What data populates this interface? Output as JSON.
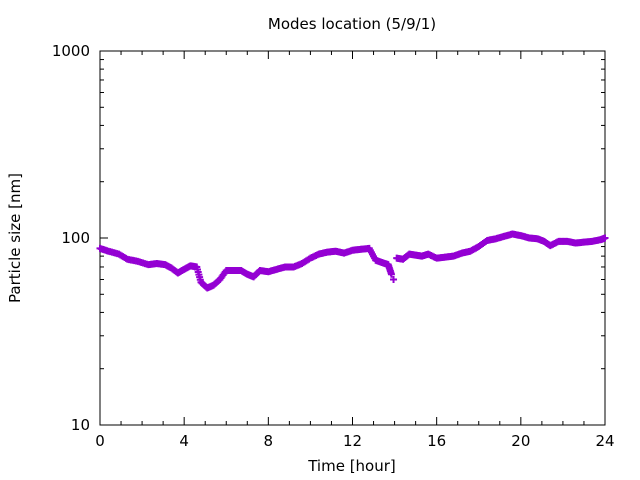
{
  "chart_data": {
    "type": "scatter",
    "title": "Modes location (5/9/1)",
    "xlabel": "Time [hour]",
    "ylabel": "Particle size [nm]",
    "xlim": [
      0,
      24
    ],
    "ylim": [
      10,
      1000
    ],
    "yscale": "log",
    "xticks": [
      0,
      4,
      8,
      12,
      16,
      20,
      24
    ],
    "xtick_labels": [
      "0",
      "4",
      "8",
      "12",
      "16",
      "20",
      "24"
    ],
    "yticks": [
      10,
      100,
      1000
    ],
    "ytick_labels": [
      "10",
      "100",
      "1000"
    ],
    "grid": false,
    "legend": "none",
    "marker": "plus",
    "color": "#9400d3",
    "series": [
      {
        "points": [
          [
            0.0,
            88
          ],
          [
            0.4,
            85
          ],
          [
            0.9,
            82
          ],
          [
            1.3,
            77
          ],
          [
            1.8,
            75
          ],
          [
            2.3,
            72
          ],
          [
            2.7,
            73
          ],
          [
            3.1,
            72
          ],
          [
            3.4,
            69
          ],
          [
            3.7,
            65
          ],
          [
            4.0,
            68
          ],
          [
            4.3,
            71
          ],
          [
            4.6,
            70
          ],
          [
            4.8,
            58
          ],
          [
            5.1,
            54
          ],
          [
            5.4,
            56
          ],
          [
            5.7,
            60
          ],
          [
            6.0,
            67
          ],
          [
            6.3,
            67
          ],
          [
            6.7,
            67
          ],
          [
            7.0,
            64
          ],
          [
            7.3,
            62
          ],
          [
            7.6,
            67
          ],
          [
            8.0,
            66
          ],
          [
            8.4,
            68
          ],
          [
            8.8,
            70
          ],
          [
            9.2,
            70
          ],
          [
            9.6,
            73
          ],
          [
            10.0,
            78
          ],
          [
            10.4,
            82
          ],
          [
            10.8,
            84
          ],
          [
            11.2,
            85
          ],
          [
            11.6,
            83
          ],
          [
            12.0,
            86
          ],
          [
            12.4,
            87
          ],
          [
            12.8,
            88
          ],
          [
            13.1,
            76
          ],
          [
            13.4,
            74
          ],
          [
            13.7,
            72
          ],
          [
            13.85,
            64
          ],
          [
            13.95,
            60
          ],
          [
            14.1,
            78
          ],
          [
            14.4,
            77
          ],
          [
            14.7,
            82
          ],
          [
            15.0,
            81
          ],
          [
            15.3,
            80
          ],
          [
            15.6,
            82
          ],
          [
            16.0,
            78
          ],
          [
            16.4,
            79
          ],
          [
            16.8,
            80
          ],
          [
            17.2,
            83
          ],
          [
            17.6,
            85
          ],
          [
            18.0,
            90
          ],
          [
            18.4,
            97
          ],
          [
            18.8,
            99
          ],
          [
            19.2,
            102
          ],
          [
            19.6,
            105
          ],
          [
            20.0,
            103
          ],
          [
            20.4,
            100
          ],
          [
            20.8,
            99
          ],
          [
            21.1,
            96
          ],
          [
            21.4,
            91
          ],
          [
            21.8,
            96
          ],
          [
            22.2,
            96
          ],
          [
            22.6,
            94
          ],
          [
            23.0,
            95
          ],
          [
            23.4,
            96
          ],
          [
            23.8,
            98
          ],
          [
            24.0,
            100
          ]
        ]
      }
    ]
  }
}
